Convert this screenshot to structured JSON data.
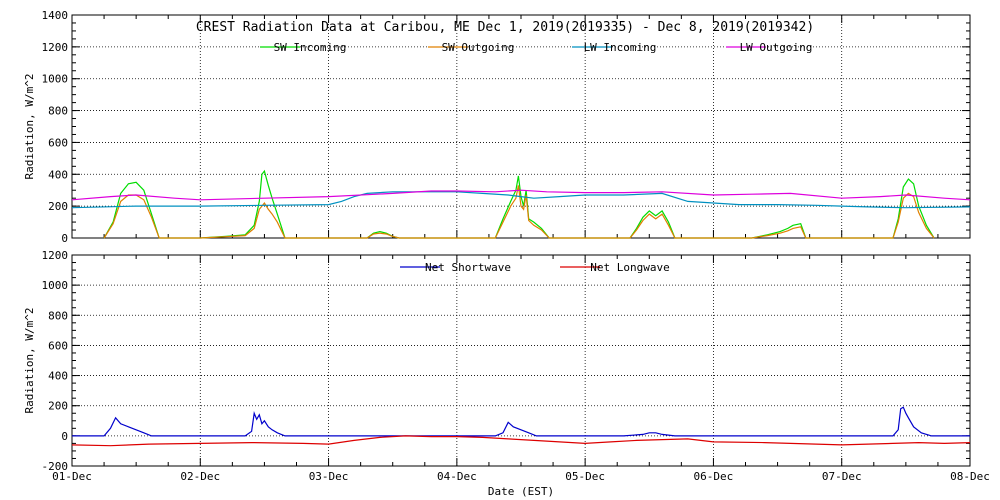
{
  "chart_data": [
    {
      "type": "line",
      "title": "CREST Radiation Data at Caribou, ME   Dec  1, 2019(2019335) - Dec  8, 2019(2019342)",
      "xlabel": "",
      "ylabel": "Radiation, W/m^2",
      "ylim": [
        0,
        1400
      ],
      "yticks": [
        0,
        200,
        400,
        600,
        800,
        1000,
        1200,
        1400
      ],
      "xlim_days": [
        0,
        7
      ],
      "grid": true,
      "legend": "top-center",
      "series": [
        {
          "name": "SW Incoming",
          "color": "#00dd00",
          "x": [
            0.25,
            0.32,
            0.38,
            0.44,
            0.5,
            0.56,
            0.62,
            0.68,
            1.0,
            1.2,
            1.35,
            1.42,
            1.46,
            1.48,
            1.5,
            1.53,
            1.56,
            1.6,
            1.66,
            2.3,
            2.35,
            2.4,
            2.45,
            2.5,
            2.55,
            2.6,
            3.3,
            3.36,
            3.42,
            3.46,
            3.48,
            3.5,
            3.52,
            3.54,
            3.56,
            3.6,
            3.66,
            3.72,
            4.35,
            4.4,
            4.45,
            4.5,
            4.55,
            4.6,
            4.65,
            4.7,
            5.3,
            5.42,
            5.52,
            5.58,
            5.62,
            5.68,
            5.72,
            6.4,
            6.44,
            6.48,
            6.52,
            6.56,
            6.6,
            6.66,
            6.72
          ],
          "y": [
            0,
            100,
            280,
            340,
            350,
            300,
            150,
            0,
            0,
            10,
            20,
            80,
            230,
            400,
            420,
            330,
            250,
            150,
            0,
            0,
            30,
            40,
            30,
            10,
            0,
            0,
            0,
            120,
            230,
            300,
            390,
            260,
            200,
            300,
            120,
            100,
            60,
            0,
            0,
            60,
            130,
            170,
            140,
            170,
            100,
            0,
            0,
            20,
            40,
            60,
            80,
            90,
            0,
            0,
            120,
            320,
            370,
            340,
            200,
            80,
            0
          ]
        },
        {
          "name": "SW Outgoing",
          "color": "#e08000",
          "x": [
            0.25,
            0.32,
            0.38,
            0.44,
            0.5,
            0.56,
            0.62,
            0.68,
            1.0,
            1.2,
            1.35,
            1.42,
            1.46,
            1.48,
            1.5,
            1.53,
            1.56,
            1.6,
            1.66,
            2.3,
            2.35,
            2.4,
            2.45,
            2.5,
            2.55,
            2.6,
            3.3,
            3.36,
            3.42,
            3.46,
            3.48,
            3.5,
            3.52,
            3.54,
            3.56,
            3.6,
            3.66,
            3.72,
            4.35,
            4.4,
            4.45,
            4.5,
            4.55,
            4.6,
            4.65,
            4.7,
            5.3,
            5.42,
            5.52,
            5.58,
            5.62,
            5.68,
            5.72,
            6.4,
            6.44,
            6.48,
            6.52,
            6.56,
            6.6,
            6.66,
            6.72
          ],
          "y": [
            0,
            90,
            230,
            270,
            270,
            240,
            130,
            0,
            0,
            8,
            15,
            60,
            180,
            200,
            220,
            180,
            150,
            100,
            0,
            0,
            25,
            30,
            25,
            10,
            0,
            0,
            0,
            100,
            200,
            250,
            330,
            200,
            180,
            270,
            110,
            80,
            50,
            0,
            0,
            50,
            110,
            150,
            120,
            150,
            80,
            0,
            0,
            15,
            30,
            45,
            60,
            70,
            0,
            0,
            100,
            250,
            280,
            260,
            160,
            60,
            0
          ]
        },
        {
          "name": "LW Incoming",
          "color": "#0090c0",
          "x": [
            0,
            0.5,
            1.0,
            1.5,
            2.0,
            2.1,
            2.2,
            2.3,
            2.5,
            2.7,
            3.0,
            3.2,
            3.4,
            3.5,
            3.6,
            3.8,
            4.0,
            4.3,
            4.6,
            4.8,
            5.0,
            5.2,
            5.5,
            5.8,
            6.0,
            6.2,
            6.5,
            7.0
          ],
          "y": [
            190,
            200,
            200,
            205,
            210,
            230,
            260,
            280,
            290,
            290,
            290,
            280,
            270,
            260,
            250,
            260,
            270,
            270,
            280,
            230,
            220,
            210,
            210,
            205,
            200,
            195,
            190,
            195
          ]
        },
        {
          "name": "LW Outgoing",
          "color": "#dd00dd",
          "x": [
            0,
            0.3,
            0.5,
            0.8,
            1.0,
            1.5,
            2.0,
            2.5,
            2.8,
            3.0,
            3.3,
            3.5,
            3.7,
            4.0,
            4.3,
            4.6,
            5.0,
            5.3,
            5.6,
            6.0,
            6.3,
            6.5,
            6.8,
            7.0
          ],
          "y": [
            240,
            260,
            270,
            250,
            240,
            250,
            260,
            280,
            295,
            295,
            290,
            300,
            290,
            285,
            285,
            290,
            270,
            275,
            280,
            250,
            260,
            270,
            250,
            240
          ]
        }
      ]
    },
    {
      "type": "line",
      "title": "",
      "xlabel": "Date (EST)",
      "ylabel": "Radiation, W/m^2",
      "ylim": [
        -200,
        1200
      ],
      "yticks": [
        -200,
        0,
        200,
        400,
        600,
        800,
        1000,
        1200
      ],
      "xlim_days": [
        0,
        7
      ],
      "grid": true,
      "legend": "top-center",
      "categories": [
        "01-Dec",
        "02-Dec",
        "03-Dec",
        "04-Dec",
        "05-Dec",
        "06-Dec",
        "07-Dec",
        "08-Dec"
      ],
      "series": [
        {
          "name": "Net Shortwave",
          "color": "#0000cc",
          "x": [
            0,
            0.25,
            0.3,
            0.34,
            0.38,
            0.44,
            0.5,
            0.56,
            0.62,
            1.0,
            1.35,
            1.4,
            1.42,
            1.44,
            1.46,
            1.48,
            1.5,
            1.53,
            1.56,
            1.6,
            1.66,
            2.0,
            3.3,
            3.36,
            3.4,
            3.44,
            3.5,
            3.56,
            3.62,
            4.3,
            4.45,
            4.5,
            4.55,
            4.6,
            4.7,
            5.0,
            6.4,
            6.44,
            6.46,
            6.48,
            6.5,
            6.52,
            6.56,
            6.62,
            6.7,
            7.0
          ],
          "y": [
            0,
            0,
            50,
            120,
            80,
            60,
            40,
            20,
            0,
            0,
            0,
            30,
            150,
            110,
            140,
            80,
            100,
            60,
            40,
            20,
            0,
            0,
            0,
            20,
            90,
            60,
            40,
            20,
            0,
            0,
            10,
            20,
            20,
            10,
            0,
            0,
            0,
            40,
            180,
            190,
            150,
            120,
            60,
            20,
            0,
            0
          ]
        },
        {
          "name": "Net Longwave",
          "color": "#dd0000",
          "x": [
            0,
            0.3,
            0.6,
            1.0,
            1.4,
            1.8,
            2.0,
            2.2,
            2.4,
            2.6,
            2.8,
            3.0,
            3.2,
            3.4,
            3.6,
            3.8,
            4.0,
            4.2,
            4.4,
            4.6,
            4.8,
            5.0,
            5.4,
            5.8,
            6.0,
            6.4,
            6.6,
            6.8,
            7.0
          ],
          "y": [
            -60,
            -65,
            -55,
            -50,
            -45,
            -50,
            -55,
            -30,
            -10,
            0,
            -5,
            -5,
            -10,
            -20,
            -30,
            -40,
            -50,
            -40,
            -30,
            -25,
            -20,
            -40,
            -45,
            -55,
            -60,
            -50,
            -45,
            -50,
            -45
          ]
        }
      ]
    }
  ]
}
